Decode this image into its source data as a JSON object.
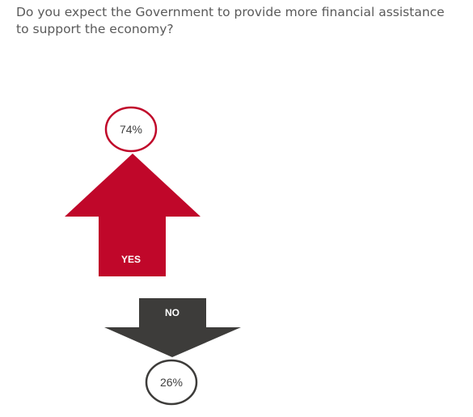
{
  "question": "Do you expect the Government to provide more financial assistance to support the economy?",
  "chart_data": {
    "type": "bar",
    "categories": [
      "YES",
      "NO"
    ],
    "values": [
      74,
      26
    ],
    "value_labels": [
      "74%",
      "26%"
    ],
    "colors": {
      "yes": "#c0072a",
      "no": "#3d3c3a",
      "circle_yes": "#c0072a",
      "circle_no": "#3d3c3a"
    }
  }
}
